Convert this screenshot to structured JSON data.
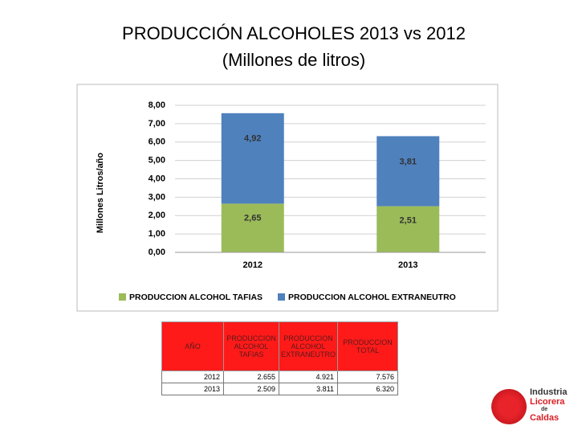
{
  "header": {
    "title": "PRODUCCIÓN ALCOHOLES  2013 vs 2012",
    "subtitle": "(Millones de litros)"
  },
  "chart_data": {
    "type": "stacked_bar",
    "y_label": "Millones  Litros/año",
    "categories": [
      "2012",
      "2013"
    ],
    "series": [
      {
        "name": "PRODUCCION ALCOHOL TAFIAS",
        "color": "#9bbb59",
        "values": [
          2.65,
          2.51
        ],
        "value_labels": [
          "2,65",
          "2,51"
        ]
      },
      {
        "name": "PRODUCCION ALCOHOL EXTRANEUTRO",
        "color": "#4f81bd",
        "values": [
          4.92,
          3.81
        ],
        "value_labels": [
          "4,92",
          "3,81"
        ]
      }
    ],
    "ylim": [
      0,
      8
    ],
    "yticks": [
      {
        "value": 0,
        "label": "0,00"
      },
      {
        "value": 1,
        "label": "1,00"
      },
      {
        "value": 2,
        "label": "2,00"
      },
      {
        "value": 3,
        "label": "3,00"
      },
      {
        "value": 4,
        "label": "4,00"
      },
      {
        "value": 5,
        "label": "5,00"
      },
      {
        "value": 6,
        "label": "6,00"
      },
      {
        "value": 7,
        "label": "7,00"
      },
      {
        "value": 8,
        "label": "8,00"
      }
    ],
    "grid": true,
    "legend": "bottom"
  },
  "table": {
    "headers": [
      "AÑO",
      "PRODUCCION ALCOHOL TAFIAS",
      "PRODUCCION ALCOHOL EXTRANEUTRO",
      "PRODUCCION TOTAL"
    ],
    "rows": [
      [
        "2012",
        "2.655",
        "4.921",
        "7.576"
      ],
      [
        "2013",
        "2.509",
        "3.811",
        "6.320"
      ]
    ]
  },
  "logo": {
    "lines": [
      "Industria",
      "Licorera",
      "de",
      "Caldas"
    ]
  }
}
